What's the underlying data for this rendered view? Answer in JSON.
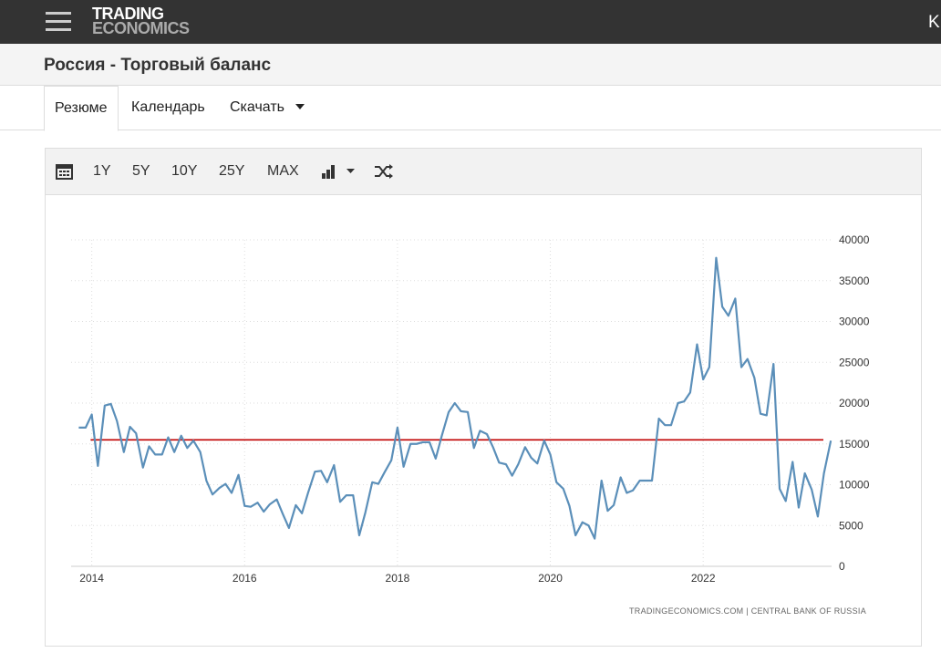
{
  "header": {
    "logo_top": "TRADING",
    "logo_bottom": "ECONOMICS",
    "right_text": "K"
  },
  "page_title": "Россия - Торговый баланс",
  "tabs": [
    "Резюме",
    "Календарь",
    "Скачать"
  ],
  "toolbar": [
    "1Y",
    "5Y",
    "10Y",
    "25Y",
    "MAX"
  ],
  "chart_data": {
    "type": "line",
    "source": "TRADINGECONOMICS.COM  |  CENTRAL BANK OF RUSSIA",
    "x": [
      2013.83,
      2013.92,
      2014.0,
      2014.08,
      2014.17,
      2014.25,
      2014.33,
      2014.42,
      2014.5,
      2014.58,
      2014.67,
      2014.75,
      2014.83,
      2014.92,
      2015.0,
      2015.08,
      2015.17,
      2015.25,
      2015.33,
      2015.42,
      2015.5,
      2015.58,
      2015.67,
      2015.75,
      2015.83,
      2015.92,
      2016.0,
      2016.08,
      2016.17,
      2016.25,
      2016.33,
      2016.42,
      2016.5,
      2016.58,
      2016.67,
      2016.75,
      2016.83,
      2016.92,
      2017.0,
      2017.08,
      2017.17,
      2017.25,
      2017.33,
      2017.42,
      2017.5,
      2017.58,
      2017.67,
      2017.75,
      2017.83,
      2017.92,
      2018.0,
      2018.08,
      2018.17,
      2018.25,
      2018.33,
      2018.42,
      2018.5,
      2018.58,
      2018.67,
      2018.75,
      2018.83,
      2018.92,
      2019.0,
      2019.08,
      2019.17,
      2019.25,
      2019.33,
      2019.42,
      2019.5,
      2019.58,
      2019.67,
      2019.75,
      2019.83,
      2019.92,
      2020.0,
      2020.08,
      2020.17,
      2020.25,
      2020.33,
      2020.42,
      2020.5,
      2020.58,
      2020.67,
      2020.75,
      2020.83,
      2020.92,
      2021.0,
      2021.08,
      2021.17,
      2021.25,
      2021.33,
      2021.42,
      2021.5,
      2021.58,
      2021.67,
      2021.75,
      2021.83,
      2021.92,
      2022.0,
      2022.08,
      2022.17,
      2022.25,
      2022.33,
      2022.42,
      2022.5,
      2022.58,
      2022.67,
      2022.75,
      2022.83,
      2022.92,
      2023.0,
      2023.08,
      2023.17,
      2023.25,
      2023.33,
      2023.42,
      2023.5,
      2023.58,
      2023.67
    ],
    "series": [
      {
        "color": "#5b8fb9",
        "values": [
          17000,
          17000,
          18600,
          12300,
          19700,
          19900,
          17800,
          14000,
          17100,
          16300,
          12100,
          14700,
          13700,
          13700,
          15800,
          14000,
          16000,
          14500,
          15400,
          14000,
          10500,
          8800,
          9600,
          10100,
          9000,
          11200,
          7400,
          7300,
          7800,
          6700,
          7600,
          8200,
          6400,
          4700,
          7500,
          6500,
          9000,
          11600,
          11700,
          10300,
          12400,
          7900,
          8700,
          8700,
          3800,
          6600,
          10300,
          10100,
          11500,
          13000,
          17000,
          12200,
          15000,
          15000,
          15200,
          15200,
          13200,
          16000,
          18900,
          20000,
          19000,
          18900,
          14500,
          16600,
          16200,
          14600,
          12700,
          12500,
          11100,
          12500,
          14600,
          13300,
          12600,
          15400,
          13700,
          10300,
          9500,
          7400,
          3800,
          5400,
          5000,
          3400,
          10500,
          6800,
          7500,
          10900,
          9000,
          9300,
          10500,
          10500,
          10500,
          18100,
          17300,
          17300,
          20000,
          20200,
          21300,
          27200,
          22900,
          24400,
          37800,
          31800,
          30700,
          32800,
          24400,
          25400,
          23100,
          18700,
          18500,
          24800,
          9500,
          8000,
          12800,
          7200,
          11400,
          9400,
          6100,
          11400,
          15400
        ]
      }
    ],
    "average_line": {
      "value": 15500,
      "color": "#c00000"
    },
    "xlim": [
      2013.73,
      2023.68
    ],
    "xticks": [
      2014,
      2016,
      2018,
      2020,
      2022
    ],
    "ylim": [
      0,
      40000
    ],
    "yticks": [
      0,
      5000,
      10000,
      15000,
      20000,
      25000,
      30000,
      35000,
      40000
    ],
    "grid": true
  }
}
